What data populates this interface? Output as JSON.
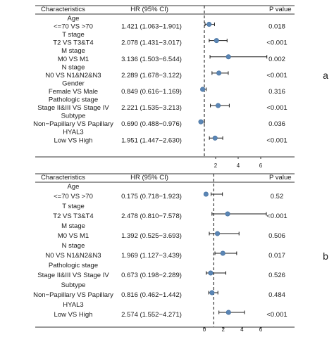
{
  "chart_data": [
    {
      "type": "forest",
      "panel_label": "a",
      "headers": {
        "characteristics": "Characteristics",
        "hr": "HR (95% CI)",
        "pvalue": "P value"
      },
      "xaxis": {
        "ticks": [
          2,
          4,
          6
        ],
        "reference": 1,
        "ref_line": "dashed"
      },
      "groups": [
        {
          "label": "Age",
          "row": {
            "label": "<=70 VS >70",
            "hr_text": "1.421 (1.063−1.901)",
            "p_text": "0.018",
            "hr": 1.421,
            "low": 1.063,
            "high": 1.901
          }
        },
        {
          "label": "T stage",
          "row": {
            "label": "T2 VS T3&T4",
            "hr_text": "2.078 (1.431−3.017)",
            "p_text": "<0.001",
            "hr": 2.078,
            "low": 1.431,
            "high": 3.017
          }
        },
        {
          "label": "M stage",
          "row": {
            "label": "M0 VS M1",
            "hr_text": "3.136 (1.503−6.544)",
            "p_text": "0.002",
            "hr": 3.136,
            "low": 1.503,
            "high": 6.544
          }
        },
        {
          "label": "N stage",
          "row": {
            "label": "N0 VS N1&N2&N3",
            "hr_text": "2.289 (1.678−3.122)",
            "p_text": "<0.001",
            "hr": 2.289,
            "low": 1.678,
            "high": 3.122
          }
        },
        {
          "label": "Gender",
          "row": {
            "label": "Female VS Male",
            "hr_text": "0.849 (0.616−1.169)",
            "p_text": "0.316",
            "hr": 0.849,
            "low": 0.616,
            "high": 1.169
          }
        },
        {
          "label": "Pathologic stage",
          "row": {
            "label": "Stage II&III VS Stage IV",
            "hr_text": "2.221 (1.535−3.213)",
            "p_text": "<0.001",
            "hr": 2.221,
            "low": 1.535,
            "high": 3.213
          }
        },
        {
          "label": "Subtype",
          "row": {
            "label": "Non−Papillary VS Papillary",
            "hr_text": "0.690 (0.488−0.976)",
            "p_text": "0.036",
            "hr": 0.69,
            "low": 0.488,
            "high": 0.976
          }
        },
        {
          "label": "HYAL3",
          "row": {
            "label": "Low VS High",
            "hr_text": "1.951 (1.447−2.630)",
            "p_text": "<0.001",
            "hr": 1.951,
            "low": 1.447,
            "high": 2.63
          }
        }
      ]
    },
    {
      "type": "forest",
      "panel_label": "b",
      "headers": {
        "characteristics": "Characteristics",
        "hr": "HR (95% CI)",
        "pvalue": "P value"
      },
      "xaxis": {
        "ticks": [
          0,
          2,
          4,
          6
        ],
        "reference": 1,
        "ref_line": "dashed"
      },
      "groups": [
        {
          "label": "Age",
          "row": {
            "label": "<=70 VS >70",
            "hr_text": "0.175 (0.718−1.923)",
            "p_text": "0.52",
            "hr": 0.175,
            "low": 0.718,
            "high": 1.923
          }
        },
        {
          "label": "T stage",
          "row": {
            "label": "T2 VS T3&T4",
            "hr_text": "2.478 (0.810−7.578)",
            "p_text": "<0.001",
            "hr": 2.478,
            "low": 0.81,
            "high": 7.578
          }
        },
        {
          "label": "M stage",
          "row": {
            "label": "M0 VS M1",
            "hr_text": "1.392 (0.525−3.693)",
            "p_text": "0.506",
            "hr": 1.392,
            "low": 0.525,
            "high": 3.693
          }
        },
        {
          "label": "N stage",
          "row": {
            "label": "N0 VS N1&N2&N3",
            "hr_text": "1.969 (1.127−3.439)",
            "p_text": "0.017",
            "hr": 1.969,
            "low": 1.127,
            "high": 3.439
          }
        },
        {
          "label": "Pathologic stage",
          "row": {
            "label": "Stage II&III VS Stage IV",
            "hr_text": "0.673 (0.198−2.289)",
            "p_text": "0.526",
            "hr": 0.673,
            "low": 0.198,
            "high": 2.289
          }
        },
        {
          "label": "Subtype",
          "row": {
            "label": "Non−Papillary VS Papillary",
            "hr_text": "0.816 (0.462−1.442)",
            "p_text": "0.484",
            "hr": 0.816,
            "low": 0.462,
            "high": 1.442
          }
        },
        {
          "label": "HYAL3",
          "row": {
            "label": "Low VS High",
            "hr_text": "2.574 (1.552−4.271)",
            "p_text": "<0.001",
            "hr": 2.574,
            "low": 1.552,
            "high": 4.271
          }
        }
      ]
    }
  ],
  "colors": {
    "point": "#5b86b5",
    "line": "#1a1a1a",
    "rule": "#333333"
  }
}
